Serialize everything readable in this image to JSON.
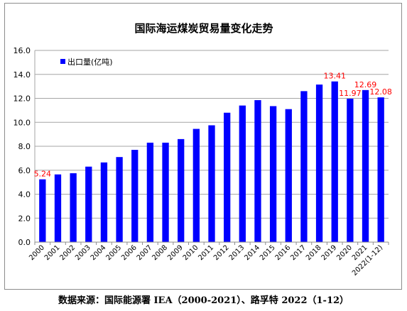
{
  "source_note": "数据来源：国际能源署 IEA（2000-2021）、路孚特 2022（1-12）",
  "chart_data": {
    "type": "bar",
    "title": "国际海运煤炭贸易量变化走势",
    "xlabel": "",
    "ylabel": "",
    "ylim": [
      0,
      16
    ],
    "yticks": [
      "0.0",
      "2.0",
      "4.0",
      "6.0",
      "8.0",
      "10.0",
      "12.0",
      "14.0",
      "16.0"
    ],
    "grid": true,
    "legend_position": "top-left",
    "categories": [
      "2000",
      "2001",
      "2002",
      "2003",
      "2004",
      "2005",
      "2006",
      "2007",
      "2008",
      "2009",
      "2010",
      "2011",
      "2012",
      "2013",
      "2014",
      "2015",
      "2016",
      "2017",
      "2018",
      "2019",
      "2020",
      "2021",
      "2022(1-12)"
    ],
    "series": [
      {
        "name": "出口量(亿吨)",
        "color": "#0000ff",
        "values": [
          5.24,
          5.65,
          5.75,
          6.3,
          6.65,
          7.1,
          7.7,
          8.3,
          8.3,
          8.6,
          9.45,
          9.75,
          10.8,
          11.4,
          11.85,
          11.35,
          11.1,
          12.6,
          13.15,
          13.41,
          11.97,
          12.69,
          12.08
        ]
      }
    ],
    "data_labels": [
      {
        "index": 0,
        "text": "5.24"
      },
      {
        "index": 19,
        "text": "13.41"
      },
      {
        "index": 20,
        "text": "11.97"
      },
      {
        "index": 21,
        "text": "12.69"
      },
      {
        "index": 22,
        "text": "12.08"
      }
    ],
    "label_color": "#ff0000"
  }
}
